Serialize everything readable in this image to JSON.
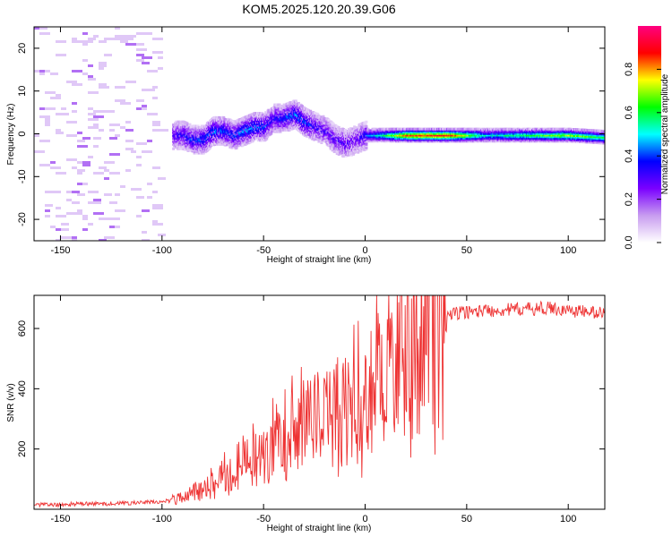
{
  "title": "KOM5.2025.120.20.39.G06",
  "chart_data": [
    {
      "type": "heatmap",
      "xlabel": "Height of straight line (km)",
      "ylabel": "Frequency (Hz)",
      "xlim": [
        -163,
        118
      ],
      "ylim": [
        -25,
        25
      ],
      "xticks": [
        -150,
        -100,
        -50,
        0,
        50,
        100
      ],
      "yticks": [
        -20,
        -10,
        0,
        10,
        20
      ],
      "colorbar": {
        "label": "Normalized spectral amplitude",
        "range": [
          0,
          1
        ],
        "ticks": [
          "0.0",
          "0.2",
          "0.4",
          "0.6",
          "0.8"
        ],
        "colors": [
          "#ffffff",
          "#c89cf0",
          "#7a00ff",
          "#0000ff",
          "#00ffff",
          "#00ff00",
          "#ffff00",
          "#ff0000",
          "#ff0080"
        ]
      },
      "ridge": {
        "x": [
          -95,
          -90,
          -85,
          -80,
          -75,
          -70,
          -65,
          -60,
          -55,
          -50,
          -45,
          -40,
          -35,
          -30,
          -25,
          -20,
          -15,
          -10,
          -5,
          0,
          5,
          10,
          20,
          40,
          60,
          80,
          100,
          118
        ],
        "freq": [
          0,
          0,
          -1,
          -1,
          1,
          1,
          0,
          1,
          2,
          2,
          4,
          4,
          5,
          3,
          2,
          1,
          -1,
          -2,
          -1,
          0,
          0,
          0,
          0,
          0,
          0,
          0,
          0,
          -0.5
        ],
        "amplitude": [
          0.3,
          0.35,
          0.4,
          0.4,
          0.45,
          0.4,
          0.4,
          0.45,
          0.45,
          0.4,
          0.35,
          0.4,
          0.45,
          0.4,
          0.35,
          0.3,
          0.3,
          0.3,
          0.25,
          0.4,
          0.5,
          0.6,
          0.85,
          0.9,
          0.5,
          0.6,
          0.7,
          0.6
        ]
      }
    },
    {
      "type": "line",
      "xlabel": "Height of straight line (km)",
      "ylabel": "SNR (v/v)",
      "xlim": [
        -163,
        118
      ],
      "ylim": [
        0,
        710
      ],
      "xticks": [
        -150,
        -100,
        -50,
        0,
        50,
        100
      ],
      "yticks": [
        200,
        400,
        600
      ],
      "series": [
        {
          "color": "#ee3333",
          "x": [
            -163,
            -150,
            -140,
            -130,
            -120,
            -110,
            -100,
            -95,
            -90,
            -85,
            -80,
            -75,
            -70,
            -65,
            -60,
            -55,
            -50,
            -45,
            -40,
            -35,
            -30,
            -25,
            -20,
            -15,
            -10,
            -5,
            0,
            5,
            10,
            15,
            20,
            25,
            30,
            35,
            40,
            50,
            60,
            70,
            80,
            90,
            100,
            110,
            118
          ],
          "values": [
            15,
            15,
            18,
            18,
            20,
            22,
            25,
            30,
            40,
            55,
            70,
            90,
            110,
            130,
            150,
            170,
            200,
            220,
            250,
            270,
            300,
            290,
            310,
            330,
            340,
            360,
            380,
            420,
            460,
            500,
            540,
            580,
            610,
            630,
            645,
            655,
            660,
            662,
            665,
            668,
            660,
            655,
            650
          ]
        }
      ]
    }
  ]
}
